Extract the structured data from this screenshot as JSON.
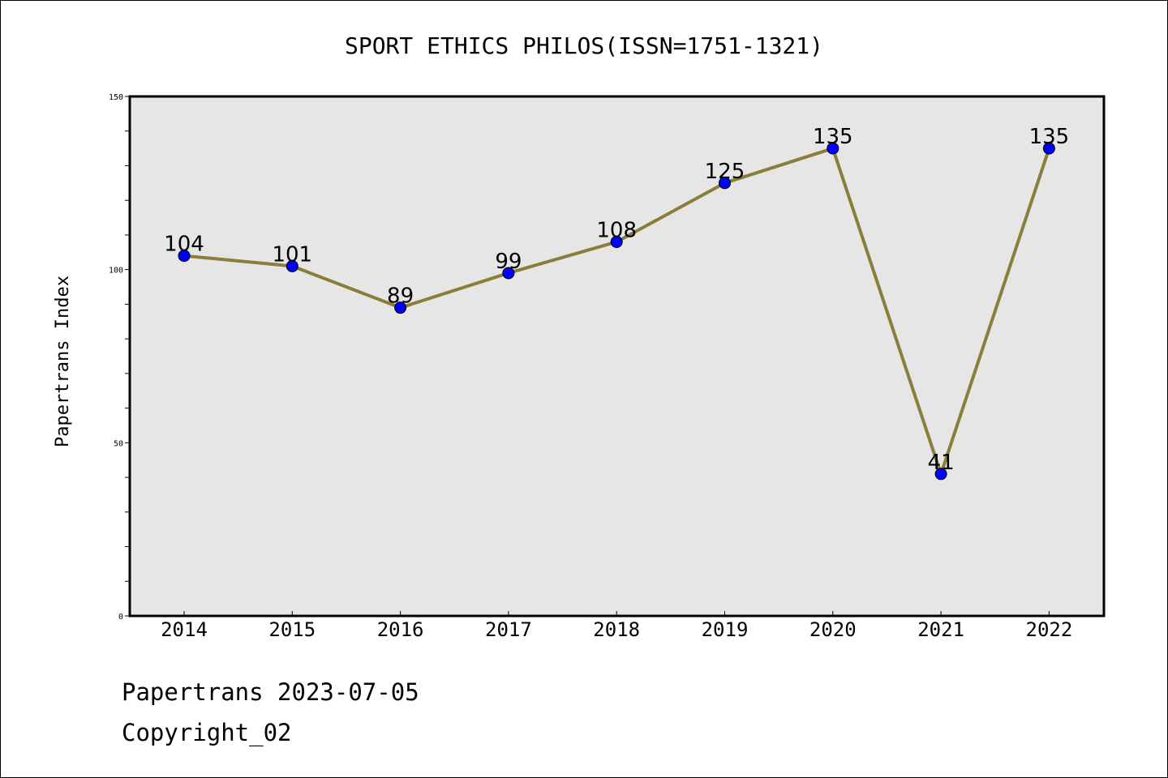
{
  "chart_data": {
    "type": "line",
    "title": "SPORT ETHICS PHILOS(ISSN=1751-1321)",
    "xlabel": "",
    "ylabel": "Papertrans Index",
    "categories": [
      "2014",
      "2015",
      "2016",
      "2017",
      "2018",
      "2019",
      "2020",
      "2021",
      "2022"
    ],
    "series": [
      {
        "values": [
          104,
          101,
          89,
          99,
          108,
          125,
          135,
          41,
          135
        ]
      }
    ],
    "ylim": [
      0,
      150
    ],
    "yticks": [
      0,
      50,
      100,
      150
    ],
    "grid": false,
    "colors": {
      "line": "#8b7d3a",
      "marker": "#0000ff",
      "plot_bg": "#e6e6e6"
    }
  },
  "footer": {
    "line1": "Papertrans 2023-07-05",
    "line2": "Copyright_02"
  }
}
